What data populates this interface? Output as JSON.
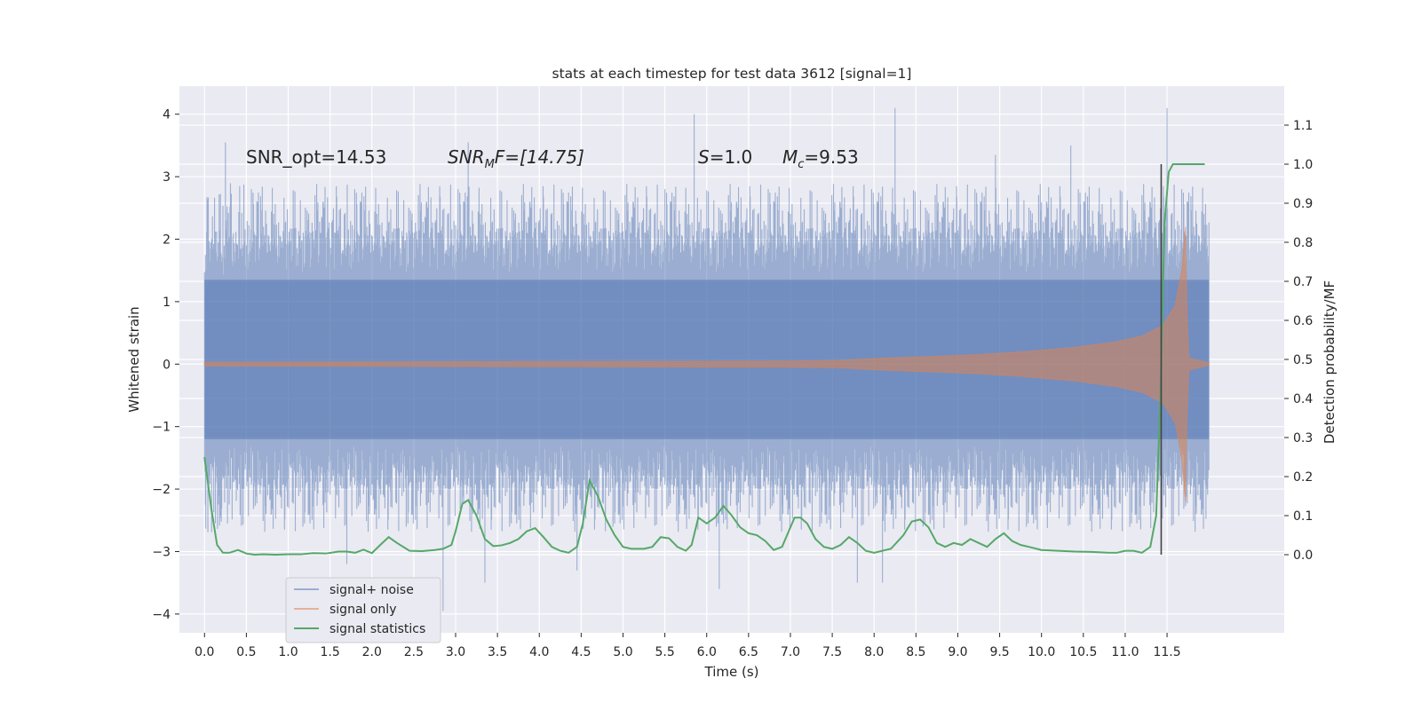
{
  "figure": {
    "title": "stats at each timestep for test data 3612 [signal=1]",
    "annotations": {
      "snr_opt": "SNR_opt=14.53",
      "snr_mf_main": "SNR",
      "snr_mf_sub": "M",
      "snr_mf_rest": "F=[14.75]",
      "s_main": "S",
      "s_rest": "=1.0",
      "mc_main": "M",
      "mc_sub": "c",
      "mc_rest": "=9.53"
    }
  },
  "colors": {
    "background": "#eaeaf2",
    "grid": "#ffffff",
    "signal_noise": "#4c72b0",
    "signal_only": "#dd8452",
    "signal_statistics": "#55a868",
    "marker": "#444444"
  },
  "chart_data": {
    "type": "line",
    "title": "stats at each timestep for test data 3612 [signal=1]",
    "xlabel": "Time (s)",
    "ylabel": "Whitened strain",
    "ylabel_right": "Detection probability/MF",
    "xlim": [
      -0.3,
      12.9
    ],
    "ylim": [
      -4.3,
      4.45
    ],
    "ylim_right": [
      -0.2,
      1.2
    ],
    "x_ticks": [
      0.0,
      0.5,
      1.0,
      1.5,
      2.0,
      2.5,
      3.0,
      3.5,
      4.0,
      4.5,
      5.0,
      5.5,
      6.0,
      6.5,
      7.0,
      7.5,
      8.0,
      8.5,
      9.0,
      9.5,
      10.0,
      10.5,
      11.0,
      11.5
    ],
    "x_tick_labels": [
      "0.0",
      "0.5",
      "1.0",
      "1.5",
      "2.0",
      "2.5",
      "3.0",
      "3.5",
      "4.0",
      "4.5",
      "5.0",
      "5.5",
      "6.0",
      "6.5",
      "7.0",
      "7.5",
      "8.0",
      "8.5",
      "9.0",
      "9.5",
      "10.0",
      "10.5",
      "11.0",
      "11.5"
    ],
    "y_ticks": [
      -4,
      -3,
      -2,
      -1,
      0,
      1,
      2,
      3,
      4
    ],
    "y_tick_labels": [
      "−4",
      "−3",
      "−2",
      "−1",
      "0",
      "1",
      "2",
      "3",
      "4"
    ],
    "y_right_ticks": [
      0.0,
      0.1,
      0.2,
      0.3,
      0.4,
      0.5,
      0.6,
      0.7,
      0.8,
      0.9,
      1.0,
      1.1
    ],
    "y_right_tick_labels": [
      "0.0",
      "0.1",
      "0.2",
      "0.3",
      "0.4",
      "0.5",
      "0.6",
      "0.7",
      "0.8",
      "0.9",
      "1.0",
      "1.1"
    ],
    "grid": true,
    "legend_position": "lower-left",
    "series": [
      {
        "name": "signal+ noise",
        "axis": "left",
        "x_range": [
          0.0,
          12.0
        ],
        "dense_band": [
          -1.2,
          1.35
        ],
        "typical_extremes": [
          -2.7,
          2.9
        ],
        "peaks": [
          [
            0.25,
            3.55
          ],
          [
            1.7,
            -3.2
          ],
          [
            2.85,
            -3.95
          ],
          [
            3.35,
            -3.5
          ],
          [
            5.85,
            4.0
          ],
          [
            6.15,
            -3.6
          ],
          [
            7.8,
            -3.5
          ],
          [
            8.1,
            -3.5
          ],
          [
            8.25,
            4.1
          ],
          [
            11.5,
            4.1
          ],
          [
            9.45,
            3.35
          ],
          [
            10.35,
            3.5
          ],
          [
            3.15,
            3.55
          ],
          [
            4.45,
            -3.3
          ]
        ]
      },
      {
        "name": "signal only",
        "axis": "left",
        "amplitude_envelope": [
          [
            0.0,
            0.03
          ],
          [
            7.0,
            0.05
          ],
          [
            7.6,
            0.06
          ],
          [
            8.0,
            0.09
          ],
          [
            8.6,
            0.12
          ],
          [
            9.2,
            0.15
          ],
          [
            9.8,
            0.2
          ],
          [
            10.4,
            0.27
          ],
          [
            10.9,
            0.36
          ],
          [
            11.2,
            0.45
          ],
          [
            11.45,
            0.62
          ],
          [
            11.6,
            0.95
          ],
          [
            11.68,
            1.55
          ],
          [
            11.72,
            2.2
          ],
          [
            11.75,
            0.1
          ],
          [
            12.0,
            0.02
          ]
        ]
      },
      {
        "name": "signal statistics",
        "axis": "right",
        "x": [
          0.0,
          0.08,
          0.15,
          0.22,
          0.3,
          0.4,
          0.5,
          0.6,
          0.7,
          0.85,
          1.0,
          1.15,
          1.3,
          1.45,
          1.6,
          1.7,
          1.8,
          1.9,
          2.0,
          2.1,
          2.2,
          2.3,
          2.45,
          2.6,
          2.75,
          2.85,
          2.95,
          3.0,
          3.08,
          3.15,
          3.25,
          3.35,
          3.45,
          3.55,
          3.65,
          3.75,
          3.85,
          3.95,
          4.05,
          4.15,
          4.25,
          4.35,
          4.45,
          4.52,
          4.6,
          4.7,
          4.8,
          4.9,
          5.0,
          5.1,
          5.25,
          5.35,
          5.45,
          5.55,
          5.65,
          5.75,
          5.82,
          5.9,
          6.0,
          6.1,
          6.2,
          6.3,
          6.4,
          6.5,
          6.6,
          6.7,
          6.8,
          6.9,
          6.98,
          7.05,
          7.12,
          7.2,
          7.3,
          7.4,
          7.5,
          7.6,
          7.7,
          7.8,
          7.9,
          8.0,
          8.2,
          8.35,
          8.45,
          8.55,
          8.65,
          8.75,
          8.85,
          8.95,
          9.05,
          9.15,
          9.25,
          9.35,
          9.45,
          9.55,
          9.65,
          9.75,
          9.85,
          10.0,
          10.2,
          10.4,
          10.6,
          10.8,
          10.9,
          11.0,
          11.1,
          11.2,
          11.3,
          11.37,
          11.42,
          11.47,
          11.52,
          11.57,
          11.65,
          11.8,
          11.95
        ],
        "y": [
          0.25,
          0.12,
          0.025,
          0.005,
          0.005,
          0.012,
          0.003,
          0.0,
          0.001,
          0.0,
          0.001,
          0.001,
          0.004,
          0.003,
          0.008,
          0.008,
          0.005,
          0.013,
          0.004,
          0.025,
          0.045,
          0.03,
          0.01,
          0.009,
          0.012,
          0.015,
          0.025,
          0.06,
          0.13,
          0.14,
          0.1,
          0.04,
          0.022,
          0.024,
          0.03,
          0.04,
          0.06,
          0.068,
          0.045,
          0.02,
          0.01,
          0.005,
          0.02,
          0.08,
          0.19,
          0.15,
          0.09,
          0.05,
          0.02,
          0.015,
          0.015,
          0.02,
          0.045,
          0.042,
          0.02,
          0.01,
          0.025,
          0.095,
          0.08,
          0.095,
          0.125,
          0.1,
          0.07,
          0.055,
          0.05,
          0.035,
          0.012,
          0.02,
          0.06,
          0.095,
          0.095,
          0.08,
          0.04,
          0.02,
          0.015,
          0.025,
          0.045,
          0.03,
          0.01,
          0.005,
          0.015,
          0.05,
          0.085,
          0.09,
          0.07,
          0.03,
          0.02,
          0.03,
          0.025,
          0.04,
          0.03,
          0.02,
          0.04,
          0.055,
          0.035,
          0.025,
          0.02,
          0.012,
          0.01,
          0.008,
          0.007,
          0.005,
          0.005,
          0.01,
          0.01,
          0.005,
          0.02,
          0.1,
          0.4,
          0.85,
          0.98,
          1.0,
          1.0,
          1.0,
          1.0
        ]
      }
    ],
    "vertical_marker": {
      "x": 11.43,
      "y_bottom": 0.0,
      "y_top": 1.0
    }
  }
}
